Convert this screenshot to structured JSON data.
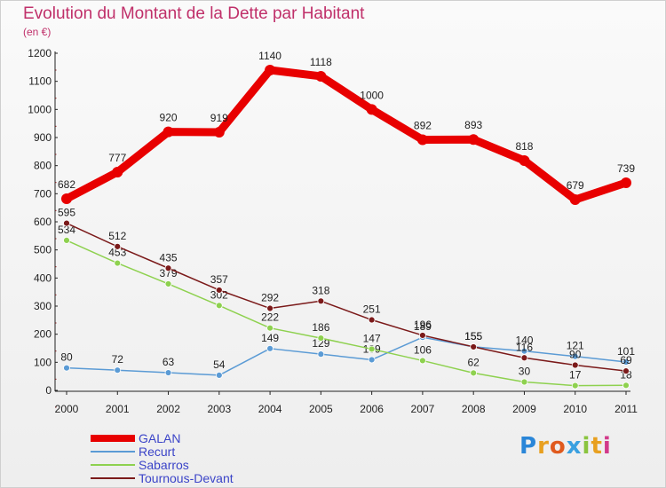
{
  "title": "Evolution du Montant de la Dette par Habitant",
  "subtitle": "(en €)",
  "brand": "Proxiti",
  "chart_data": {
    "type": "line",
    "title": "Evolution du Montant de la Dette par Habitant",
    "subtitle": "(en €)",
    "x": [
      "2000",
      "2001",
      "2002",
      "2003",
      "2004",
      "2005",
      "2006",
      "2007",
      "2008",
      "2009",
      "2010",
      "2011"
    ],
    "ylim": [
      0,
      1200
    ],
    "yticks": [
      0,
      100,
      200,
      300,
      400,
      500,
      600,
      700,
      800,
      900,
      1000,
      1100,
      1200
    ],
    "grid": false,
    "legend_position": "bottom-left",
    "series": [
      {
        "name": "GALAN",
        "color": "#e80000",
        "values": [
          682,
          777,
          920,
          919,
          1140,
          1118,
          1000,
          892,
          893,
          818,
          679,
          739
        ]
      },
      {
        "name": "Recurt",
        "color": "#5b9bd5",
        "values": [
          80,
          72,
          63,
          54,
          149,
          129,
          109,
          189,
          155,
          140,
          121,
          101
        ]
      },
      {
        "name": "Sabarros",
        "color": "#8ed14f",
        "values": [
          534,
          453,
          379,
          302,
          222,
          186,
          147,
          106,
          62,
          30,
          17,
          18
        ]
      },
      {
        "name": "Tournous-Devant",
        "color": "#7b1a1a",
        "values": [
          595,
          512,
          435,
          357,
          292,
          318,
          251,
          196,
          155,
          116,
          90,
          69
        ]
      }
    ]
  }
}
